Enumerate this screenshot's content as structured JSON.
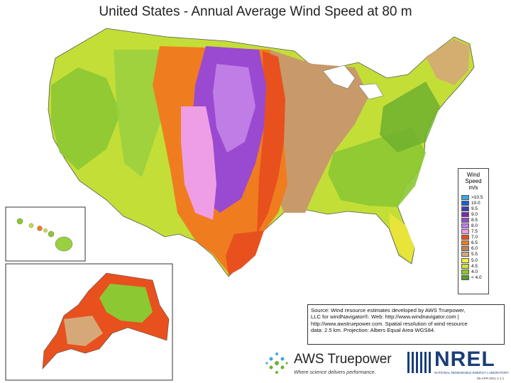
{
  "title": "United States - Annual Average Wind Speed at 80 m",
  "legend": {
    "title_line1": "Wind Speed",
    "title_line2": "m/s",
    "items": [
      {
        "label": ">10.5",
        "color": "#3aa8e8"
      },
      {
        "label": "10.0",
        "color": "#1a5fd4"
      },
      {
        "label": "9.5",
        "color": "#3f3fb8"
      },
      {
        "label": "9.0",
        "color": "#7a2aa8"
      },
      {
        "label": "8.5",
        "color": "#9a4ad0"
      },
      {
        "label": "8.0",
        "color": "#c07de6"
      },
      {
        "label": "7.5",
        "color": "#ee9ee4"
      },
      {
        "label": "7.0",
        "color": "#e8501e"
      },
      {
        "label": "6.5",
        "color": "#f07c20"
      },
      {
        "label": "6.0",
        "color": "#b8845c"
      },
      {
        "label": "5.5",
        "color": "#d6a878"
      },
      {
        "label": "5.0",
        "color": "#f8ec38"
      },
      {
        "label": "4.5",
        "color": "#c8e23a"
      },
      {
        "label": "4.0",
        "color": "#8cc832"
      },
      {
        "label": "< 4.0",
        "color": "#5a9a2a"
      }
    ]
  },
  "source": {
    "line1": "Source: Wind resource estimates developed by AWS Truepower,",
    "line2": "LLC for windNavigator®. Web: http://www.windnavigator.com |",
    "line3": "http://www.awstruepower.com. Spatial resolution of wind resource",
    "line4": "data: 2.5 km. Projection: Albers Equal Area WGS84."
  },
  "logos": {
    "aws_name": "AWS Truepower",
    "aws_tagline": "Where science delivers performance.",
    "nrel_name": "NREL",
    "nrel_sub": "NATIONAL RENEWABLE ENERGY LABORATORY"
  },
  "date_stamp": "05-APR-2011 2.1.1"
}
